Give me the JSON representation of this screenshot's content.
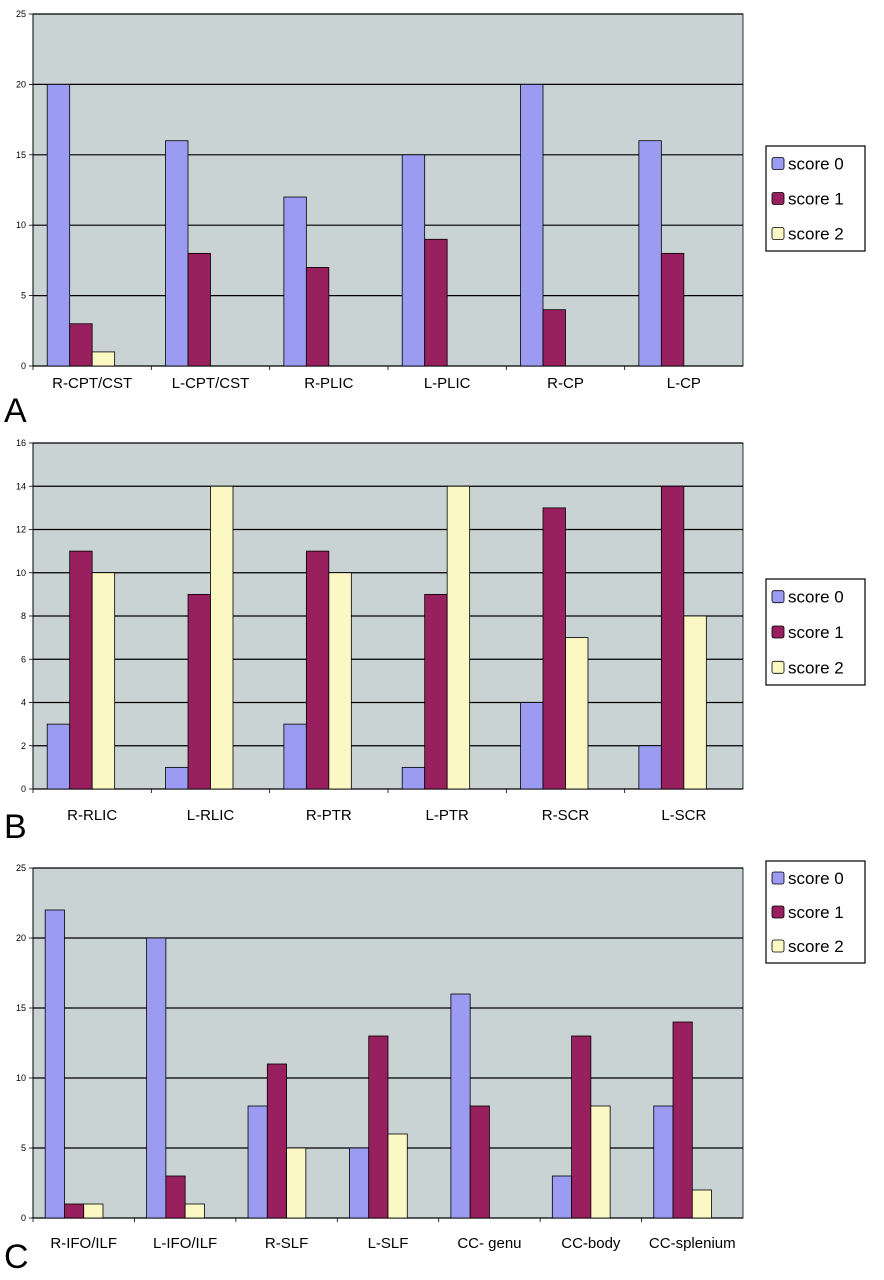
{
  "colors": {
    "plot_bg": "#c9d3d3",
    "score0": "#9b9bf2",
    "score1": "#99205f",
    "score2": "#fbf8c4",
    "gridline": "#000000"
  },
  "chart_data": [
    {
      "panel": "A",
      "type": "bar",
      "categories": [
        "R-CPT/CST",
        "L-CPT/CST",
        "R-PLIC",
        "L-PLIC",
        "R-CP",
        "L-CP"
      ],
      "series": [
        {
          "name": "score 0",
          "values": [
            20,
            16,
            12,
            15,
            20,
            16
          ]
        },
        {
          "name": "score 1",
          "values": [
            3,
            8,
            7,
            9,
            4,
            8
          ]
        },
        {
          "name": "score 2",
          "values": [
            1,
            0,
            0,
            0,
            0,
            0
          ]
        }
      ],
      "yticks": [
        "0",
        "5",
        "10",
        "15",
        "20",
        "25"
      ],
      "ylim": [
        0,
        25
      ],
      "grid": true,
      "legend": "right"
    },
    {
      "panel": "B",
      "type": "bar",
      "categories": [
        "R-RLIC",
        "L-RLIC",
        "R-PTR",
        "L-PTR",
        "R-SCR",
        "L-SCR"
      ],
      "series": [
        {
          "name": "score 0",
          "values": [
            3,
            1,
            3,
            1,
            4,
            2
          ]
        },
        {
          "name": "score 1",
          "values": [
            11,
            9,
            11,
            9,
            13,
            14
          ]
        },
        {
          "name": "score 2",
          "values": [
            10,
            14,
            10,
            14,
            7,
            8
          ]
        }
      ],
      "yticks": [
        "0",
        "2",
        "4",
        "6",
        "8",
        "10",
        "12",
        "14",
        "16"
      ],
      "ylim": [
        0,
        16
      ],
      "grid": true,
      "legend": "right"
    },
    {
      "panel": "C",
      "type": "bar",
      "categories": [
        "R-IFO/ILF",
        "L-IFO/ILF",
        "R-SLF",
        "L-SLF",
        "CC- genu",
        "CC-body",
        "CC-splenium"
      ],
      "series": [
        {
          "name": "score 0",
          "values": [
            22,
            20,
            8,
            5,
            16,
            3,
            8
          ]
        },
        {
          "name": "score 1",
          "values": [
            1,
            3,
            11,
            13,
            8,
            13,
            14
          ]
        },
        {
          "name": "score 2",
          "values": [
            1,
            1,
            5,
            6,
            0,
            8,
            2
          ]
        }
      ],
      "yticks": [
        "0",
        "5",
        "10",
        "15",
        "20",
        "25"
      ],
      "ylim": [
        0,
        25
      ],
      "grid": true,
      "legend": "right"
    }
  ]
}
